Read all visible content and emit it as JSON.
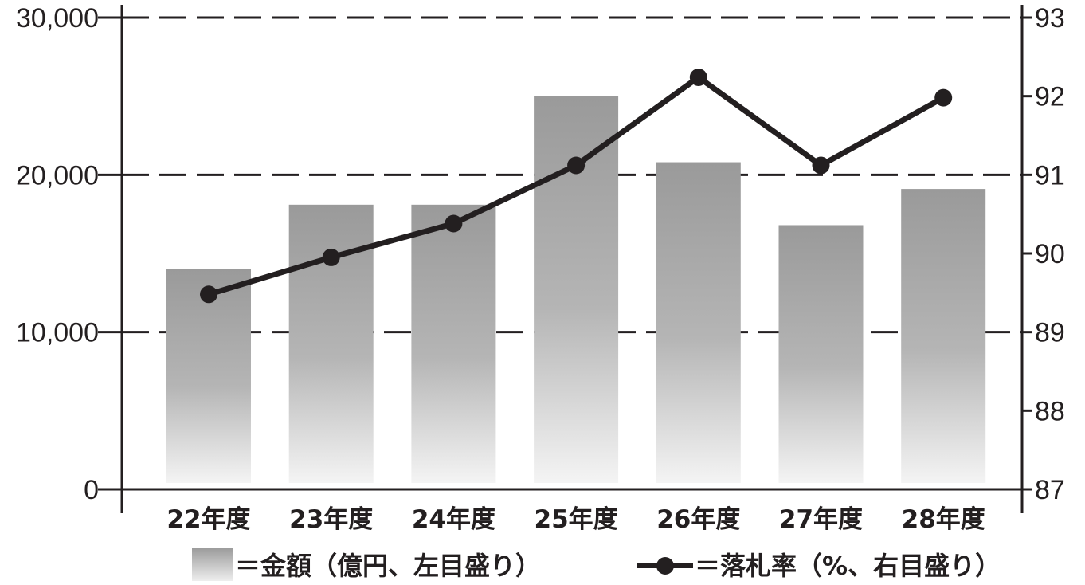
{
  "chart_data": {
    "type": "bar",
    "categories": [
      "22年度",
      "23年度",
      "24年度",
      "25年度",
      "26年度",
      "27年度",
      "28年度"
    ],
    "series": [
      {
        "name": "＝金額（億円、左目盛り）",
        "type": "bar",
        "axis": "left",
        "values": [
          14000,
          18100,
          18100,
          25000,
          20800,
          16800,
          19100
        ]
      },
      {
        "name": "＝落札率（%、右目盛り）",
        "type": "line",
        "axis": "right",
        "values": [
          89.48,
          89.95,
          90.38,
          91.12,
          92.24,
          91.12,
          91.98
        ]
      }
    ],
    "left_axis": {
      "ylim": [
        0,
        30000
      ],
      "ticks": [
        0,
        10000,
        20000,
        30000
      ],
      "tick_labels": [
        "0",
        "10,000",
        "20,000",
        "30,000"
      ]
    },
    "right_axis": {
      "ylim": [
        87,
        93
      ],
      "ticks": [
        87,
        88,
        89,
        90,
        91,
        92,
        93
      ],
      "tick_labels": [
        "87",
        "88",
        "89",
        "90",
        "91",
        "92",
        "93"
      ]
    },
    "grid": "dashed horizontal at left-axis major ticks",
    "legend_position": "bottom",
    "colors": {
      "bar_top": "#9a9a9a",
      "bar_bottom": "#f4f4f4",
      "line": "#231f20",
      "axis": "#231f20"
    }
  }
}
